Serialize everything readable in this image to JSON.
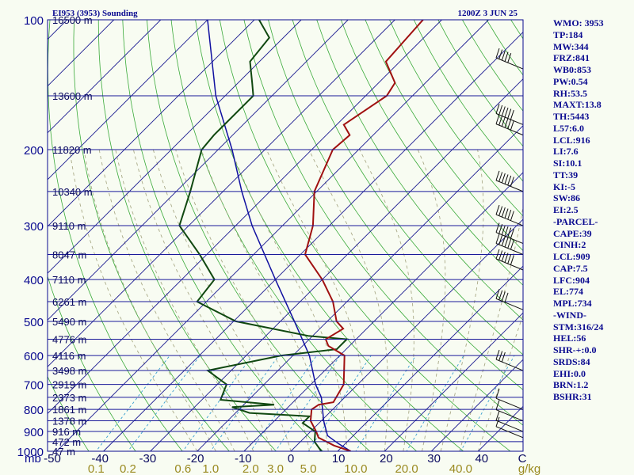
{
  "header": {
    "station_title": "EI953 (3953) Sounding",
    "valid_time": "1200Z  3 JUN 25"
  },
  "stats": [
    "WMO: 3953",
    "TP:184",
    "MW:344",
    "FRZ:841",
    "WB0:853",
    "PW:0.54",
    "RH:53.5",
    "MAXT:13.8",
    "TH:5443",
    "L57:6.0",
    "LCL:916",
    "LI:7.6",
    "SI:10.1",
    "TT:39",
    "KI:-5",
    "SW:86",
    "EI:2.5",
    "-PARCEL-",
    "CAPE:39",
    "CINH:2",
    "LCL:909",
    "CAP:7.5",
    "LFC:904",
    "EL:774",
    "MPL:734",
    "-WIND-",
    "STM:316/24",
    "HEL:56",
    "SHR-+:0.0",
    "SRDS:84",
    "EHI:0.0",
    "BRN:1.2",
    "BSHR:31"
  ],
  "colors": {
    "frame": "#0a0a90",
    "isobar": "#1a1a9a",
    "isotherm": "#1a1a90",
    "dry_adiabat": "#3aaa3a",
    "moist_adiabat": "#aaaa88",
    "mixing_ratio": "#3aa0d0",
    "temperature": "#a01010",
    "dewpoint": "#104810",
    "parcel": "#1010a0",
    "wind": "#101010"
  },
  "chart_data": {
    "type": "skew-t",
    "pressure_axis_unit": "mb",
    "pressure_ticks": [
      "100",
      "200",
      "300",
      "400",
      "500",
      "600",
      "700",
      "800",
      "900",
      "1000"
    ],
    "temperature_ticks": [
      "-50",
      "-40",
      "-30",
      "-20",
      "-10",
      "0",
      "10",
      "20",
      "30",
      "40",
      "C"
    ],
    "mixing_ratio_unit": "g/kg",
    "mixing_ratio_ticks": [
      "0.1",
      "0.2",
      "0.6",
      "1.0",
      "2.0",
      "3.0",
      "5.0",
      "10.0",
      "20.0",
      "40.0"
    ],
    "height_levels": [
      {
        "label": "16500 m",
        "p": 100
      },
      {
        "label": "13600 m",
        "p": 150
      },
      {
        "label": "11820 m",
        "p": 200
      },
      {
        "label": "10340 m",
        "p": 250
      },
      {
        "label": "9110 m",
        "p": 300
      },
      {
        "label": "8047 m",
        "p": 350
      },
      {
        "label": "7110 m",
        "p": 400
      },
      {
        "label": "6261 m",
        "p": 450
      },
      {
        "label": "5490 m",
        "p": 500
      },
      {
        "label": "4776 m",
        "p": 550
      },
      {
        "label": "4116 m",
        "p": 600
      },
      {
        "label": "3498 m",
        "p": 650
      },
      {
        "label": "2919 m",
        "p": 700
      },
      {
        "label": "2373 m",
        "p": 750
      },
      {
        "label": "1861 m",
        "p": 800
      },
      {
        "label": "1378 m",
        "p": 850
      },
      {
        "label": "916 m",
        "p": 900
      },
      {
        "label": "472 m",
        "p": 950
      },
      {
        "label": "47 m",
        "p": 1000
      }
    ],
    "temperature_profile": [
      {
        "p": 1000,
        "t": 12.8
      },
      {
        "p": 970,
        "t": 8.0
      },
      {
        "p": 930,
        "t": 3.0
      },
      {
        "p": 900,
        "t": 1.2
      },
      {
        "p": 850,
        "t": -2.3
      },
      {
        "p": 800,
        "t": -4.5
      },
      {
        "p": 780,
        "t": -4.0
      },
      {
        "p": 770,
        "t": -1.4
      },
      {
        "p": 700,
        "t": -3.0
      },
      {
        "p": 600,
        "t": -9.0
      },
      {
        "p": 570,
        "t": -14.5
      },
      {
        "p": 550,
        "t": -16.5
      },
      {
        "p": 520,
        "t": -15.0
      },
      {
        "p": 500,
        "t": -18.0
      },
      {
        "p": 450,
        "t": -23.0
      },
      {
        "p": 400,
        "t": -30.0
      },
      {
        "p": 350,
        "t": -39.0
      },
      {
        "p": 300,
        "t": -43.5
      },
      {
        "p": 250,
        "t": -50.5
      },
      {
        "p": 200,
        "t": -55.5
      },
      {
        "p": 185,
        "t": -55.0
      },
      {
        "p": 175,
        "t": -58.5
      },
      {
        "p": 150,
        "t": -55.5
      },
      {
        "p": 140,
        "t": -56.5
      },
      {
        "p": 125,
        "t": -63.0
      },
      {
        "p": 100,
        "t": -64.0
      }
    ],
    "dewpoint_profile": [
      {
        "p": 1000,
        "t": 6.5
      },
      {
        "p": 950,
        "t": 3.0
      },
      {
        "p": 900,
        "t": 1.0
      },
      {
        "p": 860,
        "t": -3.5
      },
      {
        "p": 830,
        "t": -3.5
      },
      {
        "p": 815,
        "t": -17.0
      },
      {
        "p": 790,
        "t": -22.0
      },
      {
        "p": 780,
        "t": -13.5
      },
      {
        "p": 760,
        "t": -26.0
      },
      {
        "p": 700,
        "t": -28.0
      },
      {
        "p": 650,
        "t": -35.0
      },
      {
        "p": 600,
        "t": -22.5
      },
      {
        "p": 580,
        "t": -12.0
      },
      {
        "p": 550,
        "t": -12.0
      },
      {
        "p": 540,
        "t": -21.0
      },
      {
        "p": 500,
        "t": -39.5
      },
      {
        "p": 450,
        "t": -52.0
      },
      {
        "p": 400,
        "t": -53.0
      },
      {
        "p": 350,
        "t": -61.5
      },
      {
        "p": 300,
        "t": -72.0
      },
      {
        "p": 250,
        "t": -77.0
      },
      {
        "p": 200,
        "t": -83.5
      },
      {
        "p": 185,
        "t": -84.0
      },
      {
        "p": 175,
        "t": -84.0
      },
      {
        "p": 150,
        "t": -84.0
      },
      {
        "p": 140,
        "t": -87.0
      },
      {
        "p": 125,
        "t": -92.0
      },
      {
        "p": 110,
        "t": -93.0
      },
      {
        "p": 100,
        "t": -99.0
      }
    ],
    "parcel_profile": [
      {
        "p": 1000,
        "t": 12.8
      },
      {
        "p": 960,
        "t": 8.5
      },
      {
        "p": 920,
        "t": 4.5
      },
      {
        "p": 850,
        "t": 0.5
      },
      {
        "p": 750,
        "t": -5.0
      },
      {
        "p": 700,
        "t": -9.0
      },
      {
        "p": 600,
        "t": -16.5
      },
      {
        "p": 500,
        "t": -27.0
      },
      {
        "p": 400,
        "t": -40.0
      },
      {
        "p": 300,
        "t": -56.5
      },
      {
        "p": 250,
        "t": -66.0
      },
      {
        "p": 200,
        "t": -77.0
      },
      {
        "p": 150,
        "t": -92.0
      },
      {
        "p": 100,
        "t": -110.0
      }
    ],
    "wind_barbs": [
      {
        "p": 130,
        "speed_kt": 45
      },
      {
        "p": 175,
        "speed_kt": 60
      },
      {
        "p": 185,
        "speed_kt": 55
      },
      {
        "p": 250,
        "speed_kt": 55
      },
      {
        "p": 300,
        "speed_kt": 55
      },
      {
        "p": 330,
        "speed_kt": 55
      },
      {
        "p": 350,
        "speed_kt": 55
      },
      {
        "p": 380,
        "speed_kt": 55
      },
      {
        "p": 470,
        "speed_kt": 35
      },
      {
        "p": 650,
        "speed_kt": 30
      },
      {
        "p": 800,
        "speed_kt": 10
      },
      {
        "p": 850,
        "speed_kt": 10
      },
      {
        "p": 900,
        "speed_kt": 10
      },
      {
        "p": 930,
        "speed_kt": 10
      }
    ]
  }
}
